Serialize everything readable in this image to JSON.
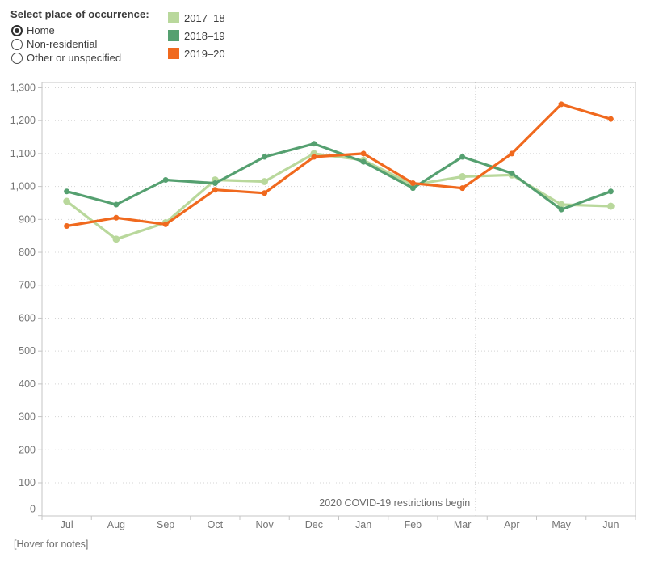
{
  "controls": {
    "label": "Select place of occurrence:",
    "options": [
      {
        "label": "Home",
        "selected": true
      },
      {
        "label": "Non-residential",
        "selected": false
      },
      {
        "label": "Other or unspecified",
        "selected": false
      }
    ]
  },
  "legend": {
    "items": [
      {
        "label": "2017–18",
        "color": "#b9d89c"
      },
      {
        "label": "2018–19",
        "color": "#55a070"
      },
      {
        "label": "2019–20",
        "color": "#f0691e"
      }
    ]
  },
  "footer": {
    "note": "[Hover for notes]"
  },
  "chart_data": {
    "type": "line",
    "title": "",
    "xlabel": "",
    "ylabel": "",
    "categories": [
      "Jul",
      "Aug",
      "Sep",
      "Oct",
      "Nov",
      "Dec",
      "Jan",
      "Feb",
      "Mar",
      "Apr",
      "May",
      "Jun"
    ],
    "series": [
      {
        "name": "2017–18",
        "color": "#b9d89c",
        "marker_radius": 4.4,
        "values": [
          955,
          840,
          890,
          1020,
          1015,
          1100,
          1080,
          1005,
          1030,
          1035,
          945,
          940
        ]
      },
      {
        "name": "2018–19",
        "color": "#55a070",
        "marker_radius": 3.5,
        "values": [
          985,
          945,
          1020,
          1010,
          1090,
          1130,
          1075,
          995,
          1090,
          1040,
          930,
          985
        ]
      },
      {
        "name": "2019–20",
        "color": "#f0691e",
        "marker_radius": 3.5,
        "values": [
          880,
          905,
          885,
          990,
          980,
          1090,
          1100,
          1010,
          995,
          1100,
          1250,
          1205
        ]
      }
    ],
    "ylim": [
      0,
      1300
    ],
    "ytick_interval": 100,
    "grid": "horizontal-dotted",
    "legend_position": "top-left",
    "reference_line": {
      "label": "2020 COVID-19 restrictions begin",
      "x_index": 8.27,
      "orientation": "vertical",
      "style": "dotted"
    }
  }
}
